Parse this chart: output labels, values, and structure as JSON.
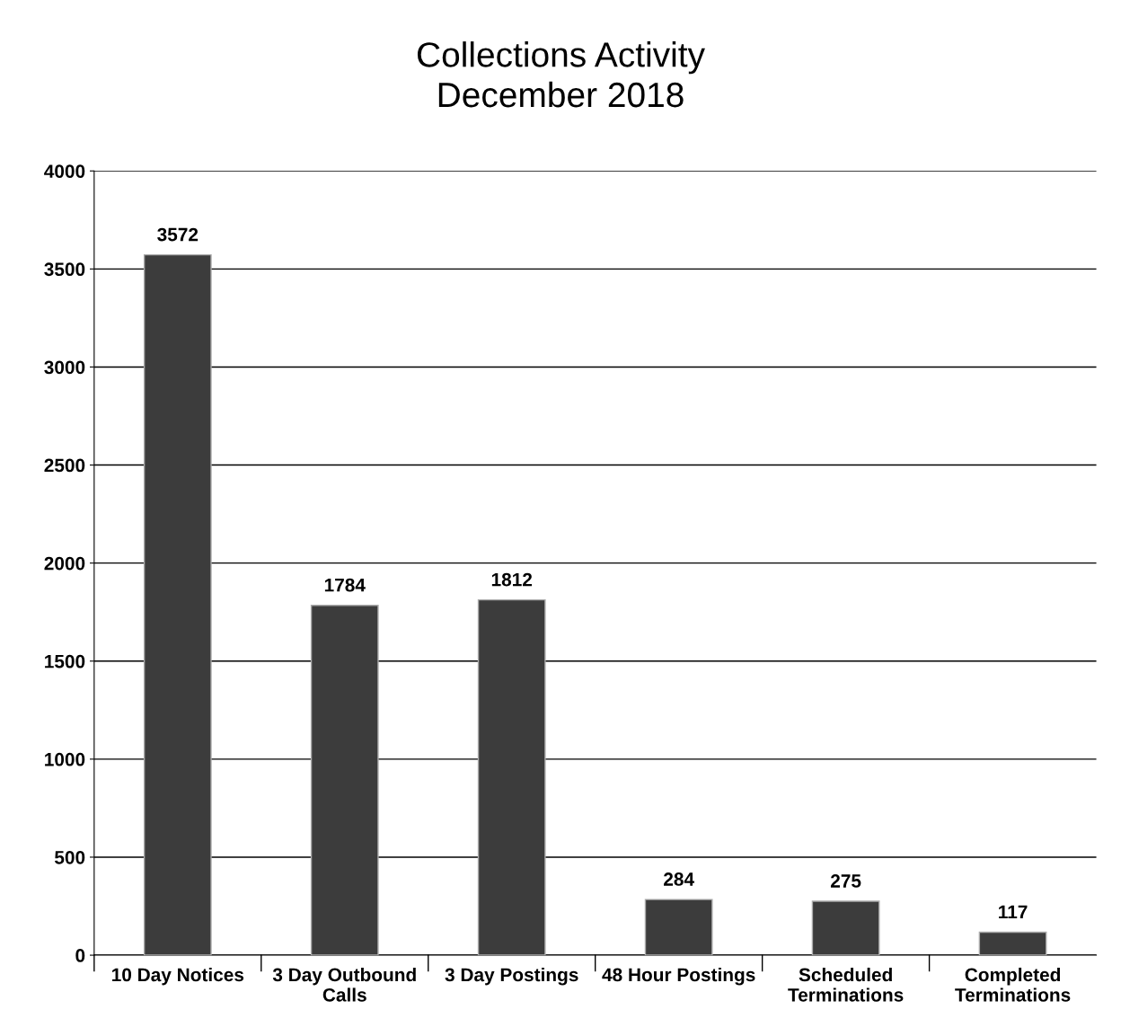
{
  "chart_data": {
    "type": "bar",
    "title": "Collections Activity\nDecember 2018",
    "categories": [
      "10 Day Notices",
      "3 Day Outbound\nCalls",
      "3 Day Postings",
      "48 Hour Postings",
      "Scheduled\nTerminations",
      "Completed\nTerminations"
    ],
    "values": [
      3572,
      1784,
      1812,
      284,
      275,
      117
    ],
    "color": "#3c3c3c",
    "ylim": [
      0,
      4000
    ],
    "yticks": [
      0,
      500,
      1000,
      1500,
      2000,
      2500,
      3000,
      3500,
      4000
    ],
    "grid": "y",
    "data_labels": true
  }
}
